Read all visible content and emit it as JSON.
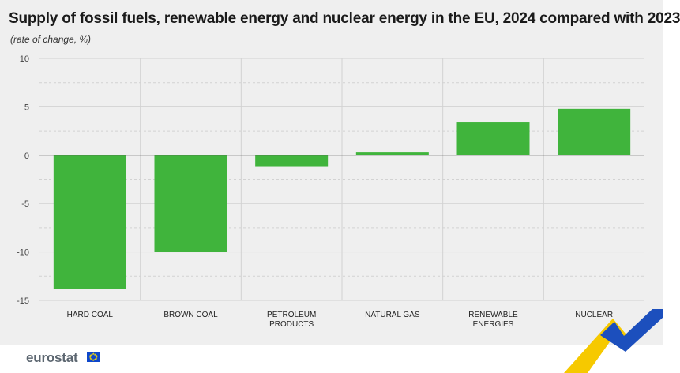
{
  "header": {
    "title": "Supply of fossil fuels, renewable energy and nuclear energy in the EU, 2024 compared with 2023",
    "subtitle": "(rate of change, %)"
  },
  "footer": {
    "logo_text": "eurostat",
    "flag_icon": "eu-flag-icon"
  },
  "colors": {
    "bar": "#40b43c",
    "background": "#efefef",
    "zero_line": "#555555",
    "accent_yellow": "#f6c900",
    "accent_blue": "#1c4fbd"
  },
  "chart_data": {
    "type": "bar",
    "title": "Supply of fossil fuels, renewable energy and nuclear energy in the EU, 2024 compared with 2023",
    "subtitle": "(rate of change, %)",
    "xlabel": "",
    "ylabel": "",
    "ylim": [
      -15,
      10
    ],
    "yticks": [
      10,
      5,
      0,
      -5,
      -10,
      -15
    ],
    "ytick_labels": [
      "10",
      "5",
      "0",
      "-5",
      "-10",
      "-15"
    ],
    "grid": true,
    "legend": "none",
    "categories": [
      [
        "HARD COAL"
      ],
      [
        "BROWN COAL"
      ],
      [
        "PETROLEUM",
        "PRODUCTS"
      ],
      [
        "NATURAL GAS"
      ],
      [
        "RENEWABLE",
        "ENERGIES"
      ],
      [
        "NUCLEAR"
      ]
    ],
    "values": [
      -13.8,
      -10.0,
      -1.2,
      0.3,
      3.4,
      4.8
    ]
  }
}
